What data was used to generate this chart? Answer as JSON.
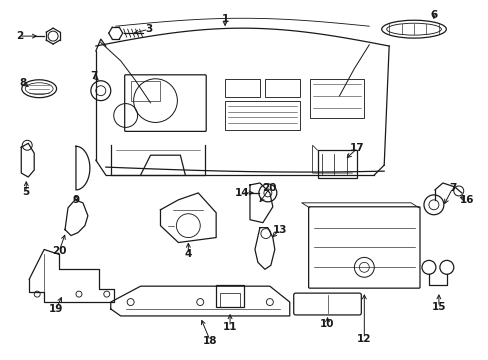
{
  "bg_color": "#ffffff",
  "line_color": "#1a1a1a",
  "lw": 0.9,
  "figsize": [
    4.89,
    3.6
  ],
  "dpi": 100
}
